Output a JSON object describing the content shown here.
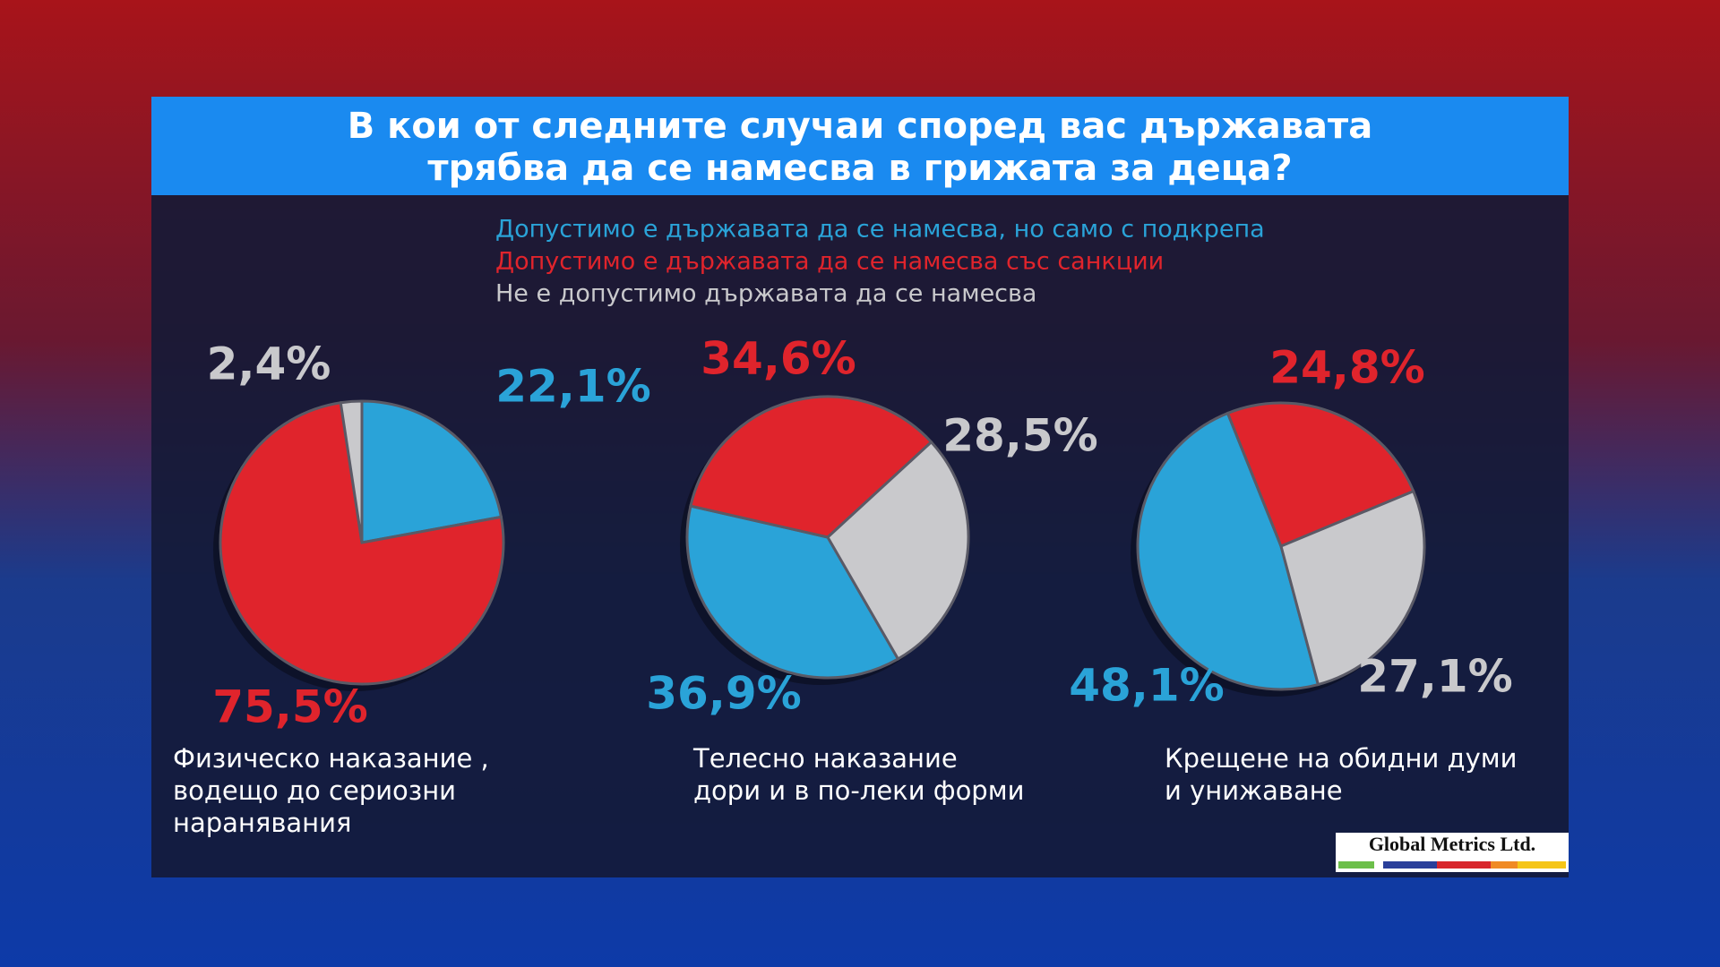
{
  "title": [
    "В кои от следните случаи според вас държавата",
    "трябва да се намесва в грижата за деца?"
  ],
  "legend": [
    {
      "name": "Допустимо е държавата да се намесва, но само с подкрепа",
      "color": "#2aa3d8"
    },
    {
      "name": "Допустимо е държавата да се намесва със санкции",
      "color": "#e0242c"
    },
    {
      "name": "Не е допустимо държавата да се намесва",
      "color": "#c9c9cc"
    }
  ],
  "chart_data": [
    {
      "type": "pie",
      "label": [
        "Физическо наказание ,",
        "водещо до сериозни",
        "наранявания"
      ],
      "values": [
        22.1,
        75.5,
        2.4
      ],
      "value_labels": [
        "22,1%",
        "75,5%",
        "2,4%"
      ]
    },
    {
      "type": "pie",
      "label": [
        "Телесно наказание",
        "дори и в по-леки форми"
      ],
      "values": [
        36.9,
        34.6,
        28.5
      ],
      "value_labels": [
        "36,9%",
        "34,6%",
        "28,5%"
      ]
    },
    {
      "type": "pie",
      "label": [
        "Крещене на обидни думи",
        "и унижаване"
      ],
      "values": [
        48.1,
        24.8,
        27.1
      ],
      "value_labels": [
        "48,1%",
        "24,8%",
        "27,1%"
      ]
    }
  ],
  "logo": "Global Metrics Ltd."
}
